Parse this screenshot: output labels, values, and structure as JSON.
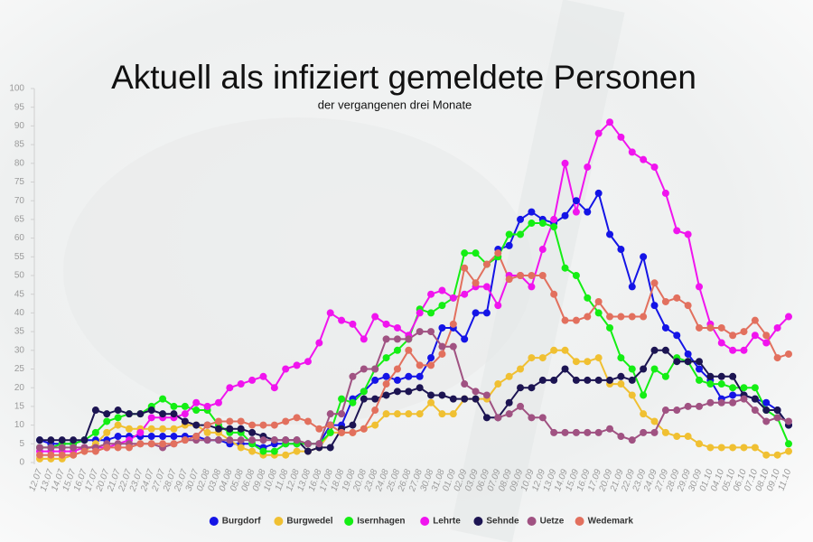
{
  "chart_data": {
    "type": "line",
    "title": "Aktuell als infiziert gemeldete Personen",
    "subtitle": "der vergangenen drei Monate",
    "categories": [
      "12.07",
      "13.07",
      "14.07",
      "15.07",
      "16.07",
      "17.07",
      "20.07",
      "21.07",
      "22.07",
      "23.07",
      "24.07",
      "27.07",
      "28.07",
      "29.07",
      "30.07",
      "02.08",
      "03.08",
      "04.08",
      "05.08",
      "06.08",
      "09.08",
      "10.08",
      "11.08",
      "12.08",
      "13.08",
      "16.08",
      "17.08",
      "18.08",
      "19.08",
      "20.08",
      "23.08",
      "24.08",
      "25.08",
      "26.08",
      "27.08",
      "30.08",
      "31.08",
      "01.09",
      "02.09",
      "03.09",
      "06.09",
      "07.09",
      "08.09",
      "09.09",
      "10.09",
      "12.09",
      "13.09",
      "14.09",
      "15.09",
      "16.09",
      "17.09",
      "20.09",
      "21.09",
      "22.09",
      "23.09",
      "24.09",
      "27.09",
      "28.09",
      "29.09",
      "30.09",
      "01.10",
      "04.10",
      "05.10",
      "06.10",
      "07.10",
      "08.10",
      "09.10",
      "11.10"
    ],
    "series": [
      {
        "name": "Burgdorf",
        "color": "#1414e6",
        "values": [
          6,
          5,
          5,
          5,
          6,
          6,
          6,
          7,
          7,
          7,
          7,
          7,
          7,
          7,
          7,
          6,
          6,
          5,
          5,
          5,
          4,
          5,
          5,
          5,
          5,
          5,
          10,
          10,
          17,
          19,
          22,
          23,
          22,
          23,
          23,
          28,
          36,
          36,
          33,
          40,
          40,
          57,
          58,
          65,
          67,
          65,
          64,
          66,
          70,
          67,
          72,
          61,
          57,
          47,
          55,
          42,
          36,
          34,
          29,
          25,
          22,
          17,
          18,
          18,
          17,
          16,
          14,
          10
        ]
      },
      {
        "name": "Burgwedel",
        "color": "#f0c032",
        "values": [
          1,
          1,
          1,
          2,
          3,
          5,
          8,
          10,
          9,
          9,
          9,
          9,
          9,
          10,
          10,
          8,
          8,
          6,
          4,
          3,
          2,
          2,
          2,
          3,
          3,
          4,
          8,
          8,
          8,
          9,
          10,
          13,
          13,
          13,
          13,
          16,
          13,
          13,
          17,
          17,
          17,
          21,
          23,
          25,
          28,
          28,
          30,
          30,
          27,
          27,
          28,
          21,
          21,
          18,
          13,
          11,
          8,
          7,
          7,
          5,
          4,
          4,
          4,
          4,
          4,
          2,
          2,
          3
        ]
      },
      {
        "name": "Isernhagen",
        "color": "#14ee14",
        "values": [
          4,
          4,
          5,
          5,
          6,
          8,
          11,
          12,
          13,
          13,
          15,
          17,
          15,
          15,
          14,
          14,
          10,
          8,
          8,
          5,
          3,
          3,
          5,
          5,
          5,
          5,
          8,
          17,
          16,
          19,
          25,
          28,
          30,
          33,
          41,
          40,
          42,
          44,
          56,
          56,
          53,
          55,
          61,
          61,
          64,
          64,
          63,
          52,
          50,
          44,
          40,
          36,
          28,
          25,
          18,
          25,
          23,
          28,
          27,
          22,
          21,
          21,
          20,
          20,
          20,
          14,
          12,
          5
        ]
      },
      {
        "name": "Lehrte",
        "color": "#f014ee",
        "values": [
          3,
          3,
          3,
          3,
          4,
          4,
          4,
          5,
          6,
          8,
          12,
          12,
          12,
          13,
          16,
          15,
          16,
          20,
          21,
          22,
          23,
          20,
          25,
          26,
          27,
          32,
          40,
          38,
          37,
          33,
          39,
          37,
          36,
          34,
          40,
          45,
          46,
          44,
          45,
          47,
          47,
          42,
          50,
          50,
          47,
          57,
          65,
          80,
          67,
          79,
          88,
          91,
          87,
          83,
          81,
          79,
          72,
          62,
          61,
          47,
          37,
          32,
          30,
          30,
          34,
          32,
          36,
          39
        ]
      },
      {
        "name": "Sehnde",
        "color": "#1c1452",
        "values": [
          6,
          6,
          6,
          6,
          6,
          14,
          13,
          14,
          13,
          13,
          14,
          13,
          13,
          11,
          10,
          10,
          9,
          9,
          9,
          8,
          7,
          6,
          6,
          6,
          3,
          4,
          4,
          9,
          10,
          17,
          17,
          18,
          19,
          19,
          20,
          18,
          18,
          17,
          17,
          17,
          12,
          12,
          16,
          20,
          20,
          22,
          22,
          25,
          22,
          22,
          22,
          22,
          23,
          22,
          25,
          30,
          30,
          27,
          27,
          27,
          23,
          23,
          23,
          18,
          17,
          14,
          14,
          10
        ]
      },
      {
        "name": "Uetze",
        "color": "#a05282",
        "values": [
          4,
          4,
          4,
          4,
          4,
          4,
          5,
          5,
          5,
          5,
          5,
          4,
          5,
          6,
          6,
          6,
          6,
          6,
          6,
          6,
          6,
          6,
          6,
          6,
          5,
          5,
          13,
          13,
          23,
          25,
          25,
          33,
          33,
          33,
          35,
          35,
          31,
          31,
          21,
          19,
          18,
          12,
          13,
          15,
          12,
          12,
          8,
          8,
          8,
          8,
          8,
          9,
          7,
          6,
          8,
          8,
          14,
          14,
          15,
          15,
          16,
          16,
          16,
          17,
          14,
          11,
          12,
          11
        ]
      },
      {
        "name": "Wedemark",
        "color": "#e2705e",
        "values": [
          2,
          2,
          2,
          2,
          3,
          3,
          4,
          4,
          4,
          5,
          5,
          5,
          5,
          6,
          7,
          10,
          11,
          11,
          11,
          10,
          10,
          10,
          11,
          12,
          11,
          9,
          10,
          8,
          8,
          9,
          14,
          21,
          25,
          30,
          26,
          26,
          29,
          37,
          52,
          48,
          53,
          56,
          49,
          50,
          50,
          50,
          45,
          38,
          38,
          39,
          43,
          39,
          39,
          39,
          39,
          48,
          43,
          44,
          42,
          36,
          36,
          36,
          34,
          35,
          38,
          34,
          28,
          29
        ]
      }
    ],
    "ylim": [
      0,
      100
    ],
    "yticks": [
      0,
      5,
      10,
      15,
      20,
      25,
      30,
      35,
      40,
      45,
      50,
      55,
      60,
      65,
      70,
      75,
      80,
      85,
      90,
      95,
      100
    ],
    "grid": false,
    "legend": "bottom"
  }
}
